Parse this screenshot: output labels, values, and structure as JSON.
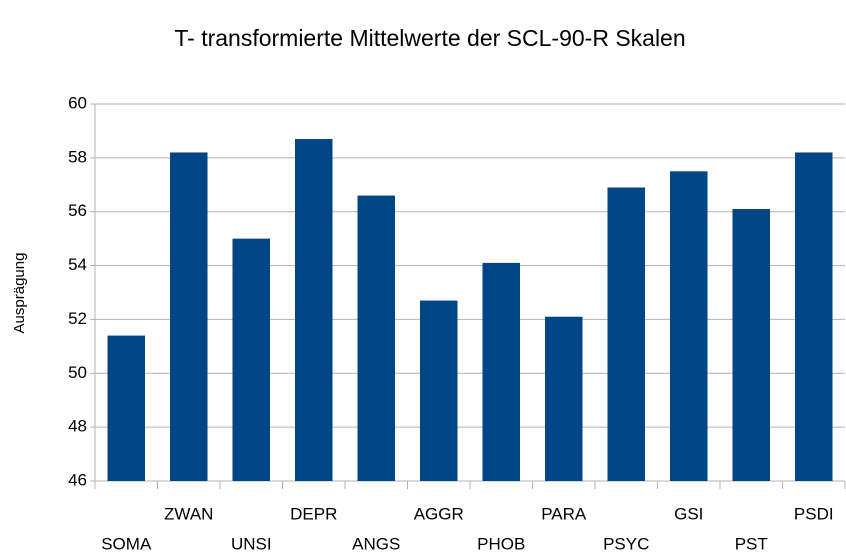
{
  "chart_data": {
    "type": "bar",
    "title": "T- transformierte Mittelwerte der SCL-90-R Skalen",
    "y_label": "Ausprägung",
    "categories": [
      "SOMA",
      "ZWAN",
      "UNSI",
      "DEPR",
      "ANGS",
      "AGGR",
      "PHOB",
      "PARA",
      "PSYC",
      "GSI",
      "PST",
      "PSDI"
    ],
    "values": [
      51.4,
      58.2,
      55.0,
      58.7,
      56.6,
      52.7,
      54.1,
      52.1,
      56.9,
      57.5,
      56.1,
      58.2
    ],
    "color": "#004586",
    "ylim": [
      46,
      60
    ],
    "yticks": [
      46,
      48,
      50,
      52,
      54,
      56,
      58,
      60
    ],
    "grid": true
  }
}
